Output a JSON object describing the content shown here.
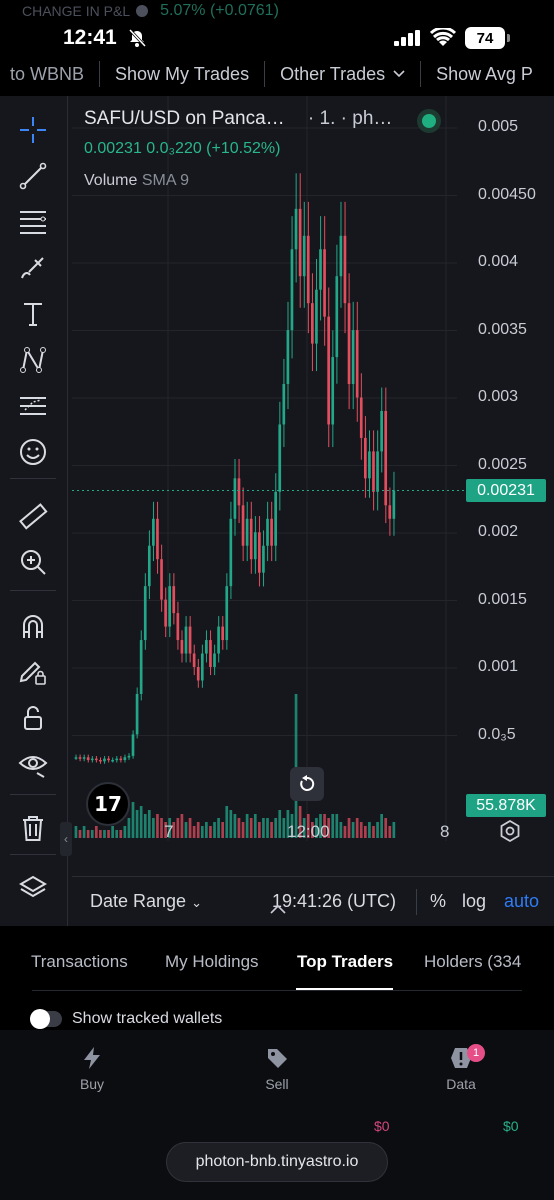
{
  "pnl": {
    "label": "CHANGE IN P&L",
    "value": "5.07% (+0.0761)"
  },
  "status_bar": {
    "time": "12:41",
    "battery": "74"
  },
  "toolbar": {
    "items": [
      "to WBNB",
      "Show My Trades",
      "Other Trades",
      "Show Avg P"
    ]
  },
  "chart_header": {
    "symbol": "SAFU/USD on Panca…",
    "meta": "· 1. · ph…",
    "ohlc": "0.00231  0.0₃220 (+10.52%)",
    "volume_label": "Volume",
    "volume_indicator": "SMA 9"
  },
  "chart_data": {
    "type": "candlestick",
    "y_ticks": [
      "0.005",
      "0.00450",
      "0.004",
      "0.0035",
      "0.003",
      "0.0025",
      "0.002",
      "0.0015",
      "0.001",
      "0.0₃5"
    ],
    "x_ticks": [
      "7",
      "12:00",
      "8"
    ],
    "last_price_label": "0.00231",
    "last_price": 0.00231,
    "volume_label": "55.878K",
    "ylim": [
      0.0003,
      0.0051
    ],
    "closes": [
      0.00033,
      0.00032,
      0.00033,
      0.00031,
      0.00032,
      0.00031,
      0.0003,
      0.00032,
      0.00031,
      0.00031,
      0.00032,
      0.00031,
      0.00033,
      0.00034,
      0.0005,
      0.0008,
      0.0012,
      0.0016,
      0.0019,
      0.0021,
      0.0018,
      0.0015,
      0.0013,
      0.0016,
      0.0014,
      0.0012,
      0.0011,
      0.0013,
      0.0011,
      0.001,
      0.0009,
      0.0011,
      0.0012,
      0.001,
      0.0011,
      0.0013,
      0.0012,
      0.0016,
      0.0021,
      0.0024,
      0.0022,
      0.0019,
      0.0021,
      0.0018,
      0.002,
      0.0017,
      0.0019,
      0.0021,
      0.0019,
      0.0023,
      0.0028,
      0.0031,
      0.0035,
      0.0041,
      0.0044,
      0.0039,
      0.0042,
      0.0037,
      0.0034,
      0.0038,
      0.0041,
      0.0036,
      0.0028,
      0.0033,
      0.0039,
      0.0042,
      0.0037,
      0.0031,
      0.0035,
      0.003,
      0.0027,
      0.0024,
      0.0026,
      0.0023,
      0.0026,
      0.0029,
      0.0022,
      0.0021,
      0.00231
    ],
    "volumes": [
      0.3,
      0.2,
      0.3,
      0.2,
      0.2,
      0.3,
      0.2,
      0.2,
      0.2,
      0.3,
      0.2,
      0.2,
      0.3,
      0.5,
      0.9,
      0.7,
      0.8,
      0.6,
      0.7,
      0.5,
      0.6,
      0.5,
      0.4,
      0.5,
      0.4,
      0.5,
      0.6,
      0.4,
      0.5,
      0.3,
      0.4,
      0.3,
      0.4,
      0.3,
      0.4,
      0.5,
      0.4,
      0.8,
      0.7,
      0.6,
      0.5,
      0.4,
      0.6,
      0.5,
      0.6,
      0.4,
      0.5,
      0.5,
      0.4,
      0.5,
      0.7,
      0.5,
      0.7,
      0.6,
      3.6,
      0.8,
      0.5,
      0.6,
      0.4,
      0.5,
      0.6,
      0.6,
      0.5,
      0.6,
      0.6,
      0.4,
      0.3,
      0.5,
      0.4,
      0.5,
      0.4,
      0.3,
      0.4,
      0.3,
      0.4,
      0.6,
      0.5,
      0.3,
      0.4
    ]
  },
  "xaxis_settings_icon": "gear-icon",
  "bottombar": {
    "date_range": "Date Range",
    "time": "19:41:26 (UTC)",
    "percent": "%",
    "log": "log",
    "auto": "auto"
  },
  "tabs": [
    "Transactions",
    "My Holdings",
    "Top Traders",
    "Holders (334"
  ],
  "active_tab": "Top Traders",
  "toggle_label": "Show tracked wallets",
  "nav": {
    "buy": "Buy",
    "sell": "Sell",
    "data": "Data",
    "data_badge": "1",
    "ghost_left": "$0",
    "ghost_right": "$0"
  },
  "url": "photon-bnb.tinyastro.io",
  "colors": {
    "up": "#22a889",
    "down": "#e34e5f",
    "accent": "#2f7cf6",
    "price_tag": "#1ea384"
  }
}
